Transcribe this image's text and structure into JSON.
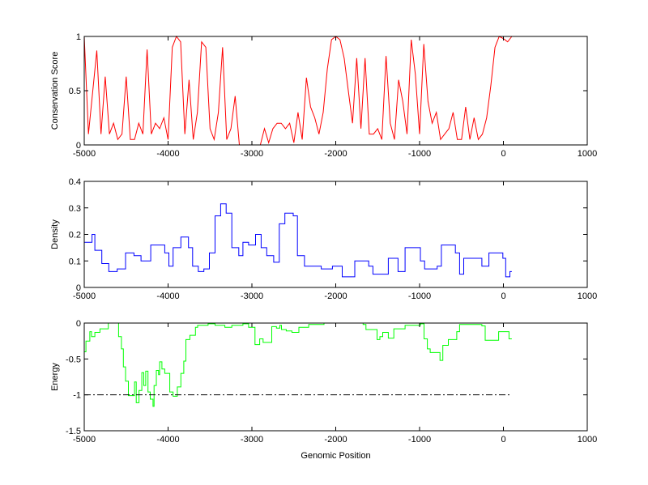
{
  "chart_data": [
    {
      "type": "line",
      "ylabel": "Conservation Score",
      "xlabel": "",
      "xlim": [
        -5000,
        1000
      ],
      "ylim": [
        0,
        1
      ],
      "xticks": [
        "-5000",
        "-4000",
        "-3000",
        "-2000",
        "-1000",
        "0",
        "1000"
      ],
      "yticks": [
        "0",
        "0.5",
        "1"
      ],
      "color": "#ff0000",
      "style": "line",
      "series": [
        {
          "name": "conservation",
          "points": [
            [
              -5000,
              1.0
            ],
            [
              -4950,
              0.1
            ],
            [
              -4900,
              0.48
            ],
            [
              -4850,
              0.87
            ],
            [
              -4800,
              0.1
            ],
            [
              -4750,
              0.63
            ],
            [
              -4700,
              0.1
            ],
            [
              -4650,
              0.2
            ],
            [
              -4600,
              0.05
            ],
            [
              -4550,
              0.1
            ],
            [
              -4500,
              0.63
            ],
            [
              -4450,
              0.05
            ],
            [
              -4400,
              0.05
            ],
            [
              -4350,
              0.2
            ],
            [
              -4300,
              0.1
            ],
            [
              -4250,
              0.88
            ],
            [
              -4200,
              0.1
            ],
            [
              -4150,
              0.2
            ],
            [
              -4100,
              0.15
            ],
            [
              -4050,
              0.25
            ],
            [
              -4000,
              0.05
            ],
            [
              -3950,
              0.9
            ],
            [
              -3900,
              1.0
            ],
            [
              -3850,
              0.95
            ],
            [
              -3800,
              0.1
            ],
            [
              -3750,
              0.6
            ],
            [
              -3700,
              0.05
            ],
            [
              -3650,
              0.3
            ],
            [
              -3600,
              0.95
            ],
            [
              -3550,
              0.9
            ],
            [
              -3500,
              0.15
            ],
            [
              -3450,
              0.05
            ],
            [
              -3400,
              0.3
            ],
            [
              -3350,
              0.9
            ],
            [
              -3300,
              0.05
            ],
            [
              -3250,
              0.15
            ],
            [
              -3200,
              0.45
            ],
            [
              -3150,
              0
            ],
            [
              -3100,
              0
            ],
            [
              -3050,
              0
            ],
            [
              -3000,
              0
            ],
            [
              -2950,
              0
            ],
            [
              -2900,
              0
            ],
            [
              -2850,
              0.15
            ],
            [
              -2800,
              0.02
            ],
            [
              -2750,
              0.15
            ],
            [
              -2700,
              0.2
            ],
            [
              -2650,
              0.2
            ],
            [
              -2600,
              0.15
            ],
            [
              -2550,
              0.2
            ],
            [
              -2500,
              0.02
            ],
            [
              -2450,
              0.3
            ],
            [
              -2400,
              0.05
            ],
            [
              -2350,
              0.62
            ],
            [
              -2300,
              0.35
            ],
            [
              -2250,
              0.25
            ],
            [
              -2200,
              0.1
            ],
            [
              -2150,
              0.3
            ],
            [
              -2100,
              0.7
            ],
            [
              -2050,
              0.97
            ],
            [
              -2000,
              1.0
            ],
            [
              -1950,
              0.97
            ],
            [
              -1900,
              0.8
            ],
            [
              -1850,
              0.5
            ],
            [
              -1800,
              0.2
            ],
            [
              -1750,
              0.8
            ],
            [
              -1700,
              0.15
            ],
            [
              -1650,
              0.8
            ],
            [
              -1600,
              0.1
            ],
            [
              -1550,
              0.1
            ],
            [
              -1500,
              0.15
            ],
            [
              -1450,
              0.05
            ],
            [
              -1400,
              0.82
            ],
            [
              -1350,
              0.2
            ],
            [
              -1300,
              0.05
            ],
            [
              -1250,
              0.6
            ],
            [
              -1200,
              0.4
            ],
            [
              -1150,
              0.1
            ],
            [
              -1100,
              0.97
            ],
            [
              -1050,
              0.65
            ],
            [
              -1000,
              0.1
            ],
            [
              -950,
              0.93
            ],
            [
              -900,
              0.4
            ],
            [
              -850,
              0.2
            ],
            [
              -800,
              0.3
            ],
            [
              -750,
              0.05
            ],
            [
              -700,
              0.1
            ],
            [
              -650,
              0.15
            ],
            [
              -600,
              0.3
            ],
            [
              -550,
              0.05
            ],
            [
              -500,
              0.05
            ],
            [
              -450,
              0.35
            ],
            [
              -400,
              0.05
            ],
            [
              -350,
              0.25
            ],
            [
              -300,
              0.05
            ],
            [
              -250,
              0.1
            ],
            [
              -200,
              0.25
            ],
            [
              -150,
              0.55
            ],
            [
              -100,
              0.9
            ],
            [
              -50,
              1.0
            ],
            [
              0,
              0.98
            ],
            [
              50,
              0.95
            ],
            [
              100,
              1.0
            ]
          ]
        }
      ]
    },
    {
      "type": "line",
      "ylabel": "Density",
      "xlabel": "",
      "xlim": [
        -5000,
        1000
      ],
      "ylim": [
        0,
        0.4
      ],
      "xticks": [
        "-5000",
        "-4000",
        "-3000",
        "-2000",
        "-1000",
        "0",
        "1000"
      ],
      "yticks": [
        "0",
        "0.1",
        "0.2",
        "0.3",
        "0.4"
      ],
      "color": "#0000ff",
      "style": "step",
      "series": [
        {
          "name": "density",
          "points": [
            [
              -5000,
              0.17
            ],
            [
              -4907,
              0.2
            ],
            [
              -4873,
              0.14
            ],
            [
              -4790,
              0.09
            ],
            [
              -4707,
              0.06
            ],
            [
              -4607,
              0.07
            ],
            [
              -4507,
              0.13
            ],
            [
              -4407,
              0.12
            ],
            [
              -4323,
              0.1
            ],
            [
              -4207,
              0.16
            ],
            [
              -4040,
              0.13
            ],
            [
              -3990,
              0.08
            ],
            [
              -3940,
              0.15
            ],
            [
              -3847,
              0.19
            ],
            [
              -3757,
              0.15
            ],
            [
              -3707,
              0.08
            ],
            [
              -3640,
              0.06
            ],
            [
              -3573,
              0.07
            ],
            [
              -3507,
              0.13
            ],
            [
              -3440,
              0.27
            ],
            [
              -3373,
              0.315
            ],
            [
              -3307,
              0.28
            ],
            [
              -3240,
              0.15
            ],
            [
              -3157,
              0.12
            ],
            [
              -3107,
              0.17
            ],
            [
              -3040,
              0.16
            ],
            [
              -2957,
              0.2
            ],
            [
              -2890,
              0.15
            ],
            [
              -2823,
              0.12
            ],
            [
              -2740,
              0.095
            ],
            [
              -2673,
              0.24
            ],
            [
              -2607,
              0.28
            ],
            [
              -2507,
              0.27
            ],
            [
              -2457,
              0.12
            ],
            [
              -2373,
              0.08
            ],
            [
              -2173,
              0.07
            ],
            [
              -2040,
              0.08
            ],
            [
              -1923,
              0.04
            ],
            [
              -1773,
              0.1
            ],
            [
              -1607,
              0.08
            ],
            [
              -1557,
              0.05
            ],
            [
              -1373,
              0.11
            ],
            [
              -1257,
              0.06
            ],
            [
              -1173,
              0.15
            ],
            [
              -1040,
              0.15
            ],
            [
              -990,
              0.1
            ],
            [
              -940,
              0.07
            ],
            [
              -790,
              0.08
            ],
            [
              -740,
              0.16
            ],
            [
              -573,
              0.13
            ],
            [
              -523,
              0.05
            ],
            [
              -473,
              0.11
            ],
            [
              -307,
              0.11
            ],
            [
              -257,
              0.08
            ],
            [
              -173,
              0.13
            ],
            [
              -7,
              0.11
            ],
            [
              27,
              0.04
            ],
            [
              77,
              0.06
            ],
            [
              100,
              0.06
            ]
          ]
        }
      ]
    },
    {
      "type": "line",
      "ylabel": "Energy",
      "xlabel": "Genomic Position",
      "xlim": [
        -5000,
        1000
      ],
      "ylim": [
        -1.5,
        0
      ],
      "xticks": [
        "-5000",
        "-4000",
        "-3000",
        "-2000",
        "-1000",
        "0",
        "1000"
      ],
      "yticks": [
        "-1.5",
        "-1",
        "-0.5",
        "0"
      ],
      "color": "#00ff00",
      "style": "step",
      "reference_line": {
        "y": -1,
        "x_range": [
          -5000,
          100
        ],
        "style": "dash-dot",
        "color": "#000000"
      },
      "series": [
        {
          "name": "energy",
          "points": [
            [
              -5000,
              -0.4
            ],
            [
              -4980,
              -0.25
            ],
            [
              -4933,
              -0.12
            ],
            [
              -4913,
              -0.19
            ],
            [
              -4873,
              -0.13
            ],
            [
              -4813,
              -0.08
            ],
            [
              -4713,
              0
            ],
            [
              -4590,
              -0.19
            ],
            [
              -4557,
              -0.36
            ],
            [
              -4533,
              -0.61
            ],
            [
              -4507,
              -0.81
            ],
            [
              -4473,
              -1.01
            ],
            [
              -4400,
              -0.82
            ],
            [
              -4380,
              -1.11
            ],
            [
              -4347,
              -0.94
            ],
            [
              -4313,
              -0.69
            ],
            [
              -4290,
              -0.87
            ],
            [
              -4267,
              -0.67
            ],
            [
              -4240,
              -0.96
            ],
            [
              -4213,
              -1.06
            ],
            [
              -4180,
              -1.16
            ],
            [
              -4167,
              -0.87
            ],
            [
              -4140,
              -0.66
            ],
            [
              -4113,
              -0.72
            ],
            [
              -4100,
              -0.54
            ],
            [
              -4073,
              -0.64
            ],
            [
              -4040,
              -0.7
            ],
            [
              -3980,
              -0.96
            ],
            [
              -3940,
              -1.02
            ],
            [
              -3890,
              -0.89
            ],
            [
              -3847,
              -0.7
            ],
            [
              -3813,
              -0.53
            ],
            [
              -3787,
              -0.23
            ],
            [
              -3740,
              -0.17
            ],
            [
              -3673,
              -0.06
            ],
            [
              -3647,
              -0.03
            ],
            [
              -3523,
              -0.01
            ],
            [
              -3440,
              -0.03
            ],
            [
              -3323,
              -0.06
            ],
            [
              -3240,
              -0.03
            ],
            [
              -3107,
              -0.01
            ],
            [
              -3040,
              -0.06
            ],
            [
              -2963,
              -0.3
            ],
            [
              -2907,
              -0.22
            ],
            [
              -2867,
              -0.27
            ],
            [
              -2763,
              -0.05
            ],
            [
              -2707,
              -0.07
            ],
            [
              -2667,
              -0.03
            ],
            [
              -2647,
              -0.09
            ],
            [
              -2590,
              -0.11
            ],
            [
              -2523,
              -0.13
            ],
            [
              -2440,
              -0.06
            ],
            [
              -2323,
              -0.02
            ],
            [
              -2140,
              0
            ],
            [
              -1673,
              -0.02
            ],
            [
              -1640,
              -0.09
            ],
            [
              -1507,
              -0.23
            ],
            [
              -1473,
              -0.19
            ],
            [
              -1440,
              -0.13
            ],
            [
              -1373,
              -0.21
            ],
            [
              -1307,
              -0.08
            ],
            [
              -1173,
              -0.03
            ],
            [
              -990,
              -0.01
            ],
            [
              -947,
              -0.22
            ],
            [
              -907,
              -0.36
            ],
            [
              -873,
              -0.41
            ],
            [
              -757,
              -0.52
            ],
            [
              -723,
              -0.31
            ],
            [
              -657,
              -0.23
            ],
            [
              -557,
              -0.12
            ],
            [
              -523,
              -0.02
            ],
            [
              -257,
              -0.04
            ],
            [
              -217,
              -0.24
            ],
            [
              -57,
              -0.12
            ],
            [
              67,
              -0.22
            ],
            [
              100,
              -0.22
            ]
          ]
        }
      ]
    }
  ]
}
